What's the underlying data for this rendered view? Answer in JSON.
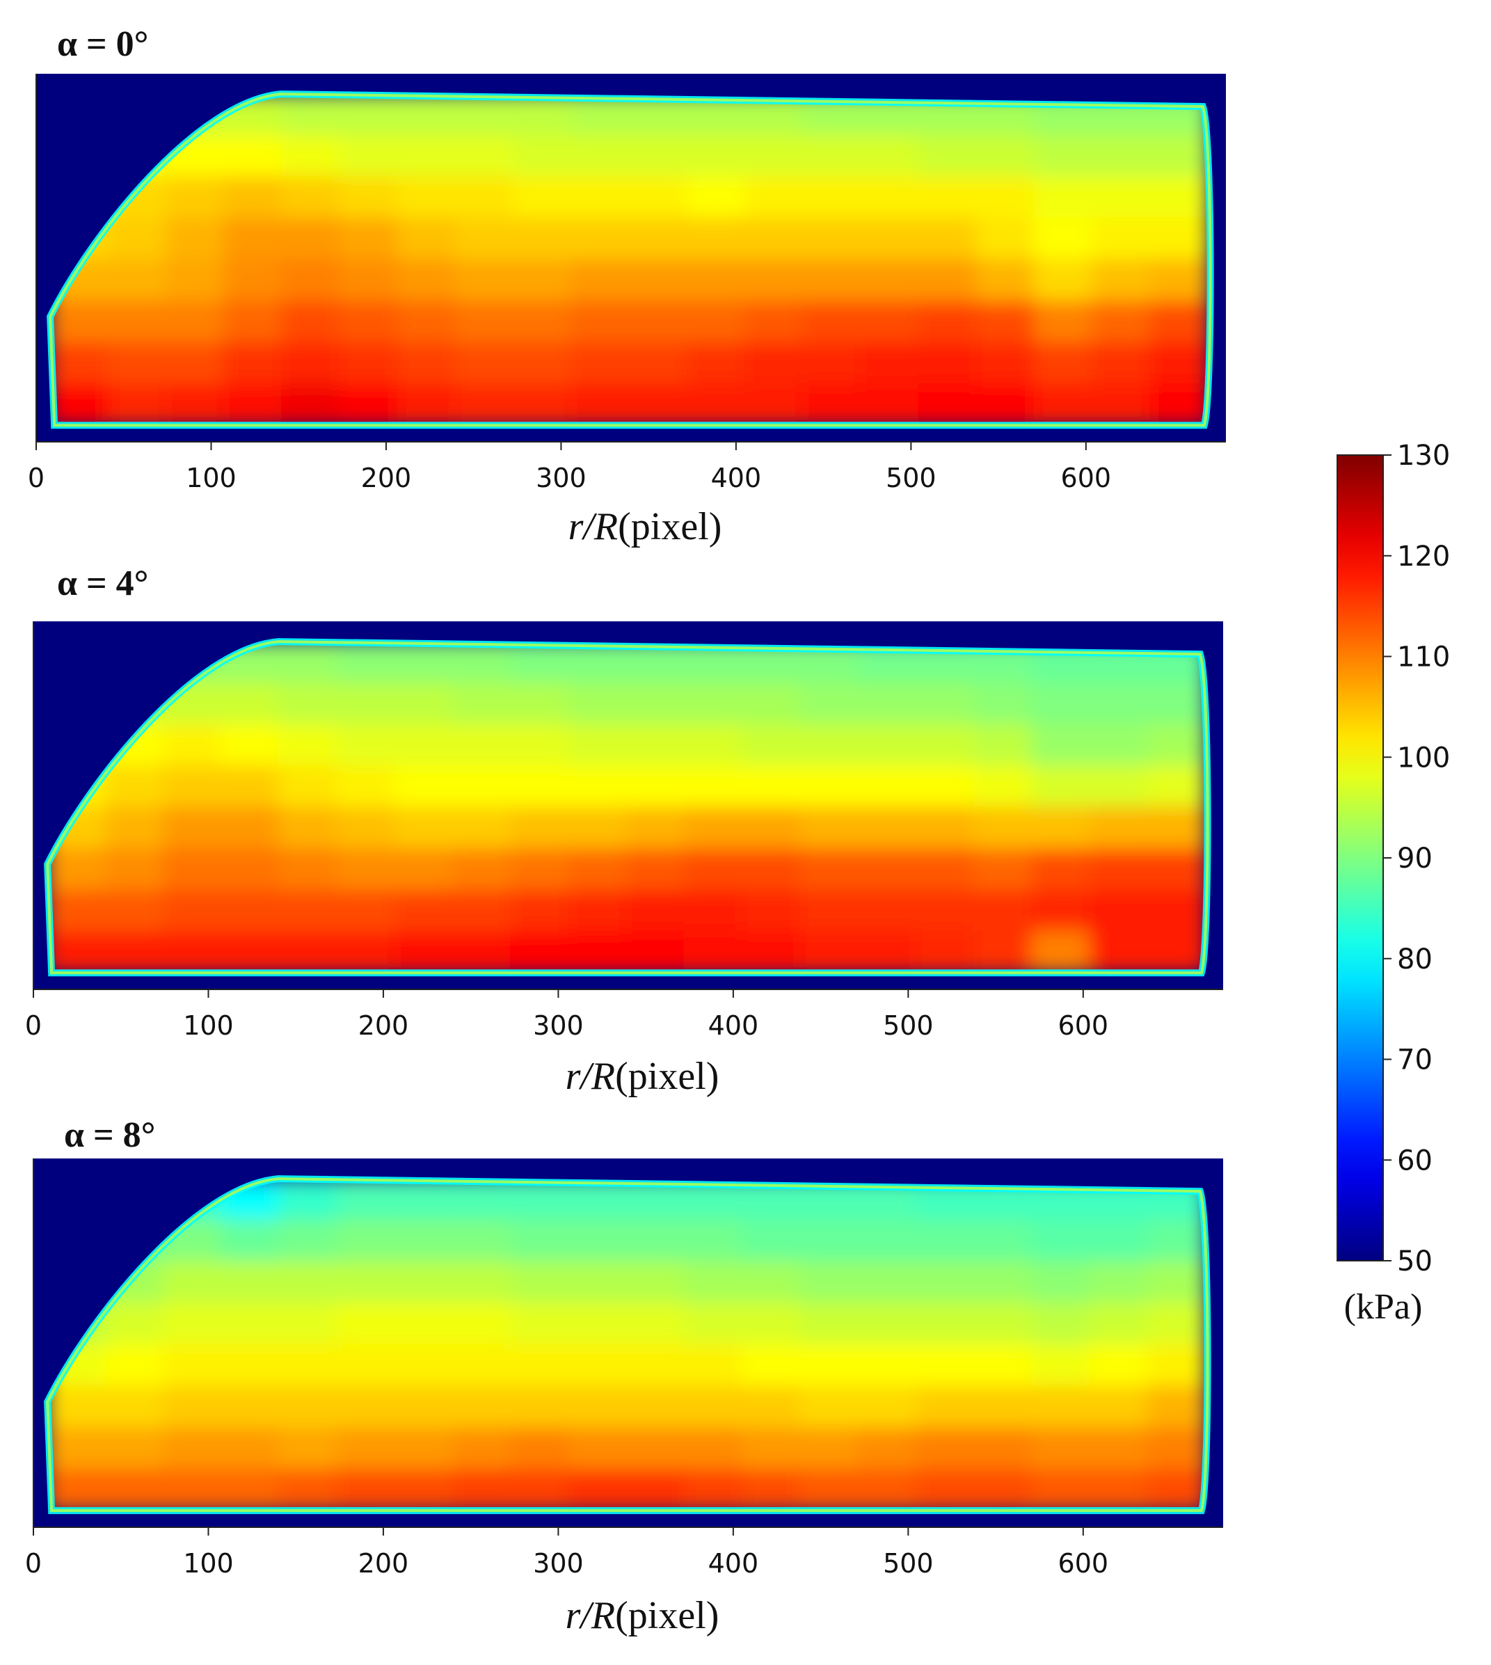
{
  "chart_data": {
    "type": "heatmap",
    "panels": [
      {
        "title": "α = 0°",
        "xlabel_italic": "r/R",
        "xlabel_rest": "(pixel)",
        "xticks": [
          0,
          100,
          200,
          300,
          400,
          500,
          600
        ],
        "xlim": [
          0,
          680
        ],
        "rows": [
          [
            null,
            92,
            96,
            96,
            95,
            95,
            95,
            95,
            95,
            94,
            94,
            94,
            94,
            93,
            93,
            93,
            93,
            92,
            92,
            92
          ],
          [
            null,
            99,
            100,
            100,
            99,
            98,
            98,
            98,
            97,
            97,
            97,
            97,
            97,
            97,
            97,
            96,
            96,
            95,
            95,
            95
          ],
          [
            101,
            103,
            104,
            105,
            104,
            103,
            102,
            102,
            101,
            101,
            101,
            100,
            101,
            101,
            101,
            101,
            101,
            99,
            99,
            99
          ],
          [
            103,
            104,
            106,
            108,
            108,
            107,
            105,
            104,
            104,
            104,
            104,
            104,
            104,
            104,
            104,
            104,
            102,
            100,
            101,
            101
          ],
          [
            106,
            106,
            107,
            109,
            110,
            109,
            108,
            107,
            107,
            108,
            108,
            108,
            108,
            108,
            108,
            108,
            106,
            103,
            105,
            106
          ],
          [
            110,
            110,
            110,
            112,
            114,
            113,
            112,
            111,
            111,
            112,
            112,
            112,
            113,
            114,
            114,
            115,
            114,
            110,
            112,
            114
          ],
          [
            115,
            114,
            114,
            116,
            117,
            116,
            115,
            114,
            114,
            115,
            115,
            116,
            117,
            117,
            118,
            118,
            117,
            115,
            116,
            118
          ],
          [
            120,
            117,
            118,
            119,
            121,
            120,
            118,
            117,
            117,
            118,
            118,
            118,
            118,
            119,
            119,
            120,
            120,
            118,
            118,
            120
          ]
        ]
      },
      {
        "title": "α = 4°",
        "xlabel_italic": "r/R",
        "xlabel_rest": "(pixel)",
        "xticks": [
          0,
          100,
          200,
          300,
          400,
          500,
          600
        ],
        "xlim": [
          0,
          680
        ],
        "rows": [
          [
            null,
            90,
            92,
            92,
            92,
            91,
            91,
            91,
            90,
            90,
            90,
            90,
            90,
            90,
            89,
            89,
            89,
            88,
            88,
            88
          ],
          [
            null,
            96,
            96,
            96,
            95,
            95,
            95,
            94,
            94,
            93,
            93,
            93,
            93,
            92,
            92,
            92,
            91,
            90,
            90,
            90
          ],
          [
            98,
            100,
            101,
            100,
            99,
            98,
            98,
            98,
            98,
            97,
            97,
            97,
            96,
            96,
            96,
            96,
            95,
            92,
            92,
            93
          ],
          [
            101,
            103,
            104,
            104,
            102,
            101,
            100,
            100,
            100,
            100,
            100,
            100,
            100,
            100,
            100,
            100,
            99,
            97,
            97,
            98
          ],
          [
            104,
            106,
            108,
            108,
            106,
            105,
            104,
            104,
            105,
            105,
            106,
            107,
            107,
            106,
            106,
            106,
            105,
            105,
            106,
            106
          ],
          [
            108,
            109,
            111,
            111,
            110,
            109,
            109,
            110,
            111,
            112,
            113,
            114,
            114,
            113,
            113,
            113,
            112,
            114,
            115,
            115
          ],
          [
            113,
            113,
            114,
            114,
            114,
            114,
            115,
            115,
            116,
            117,
            118,
            118,
            117,
            116,
            116,
            116,
            116,
            117,
            118,
            118
          ],
          [
            118,
            118,
            118,
            118,
            118,
            118,
            119,
            119,
            120,
            120,
            120,
            119,
            119,
            118,
            118,
            117,
            116,
            110,
            118,
            118
          ]
        ]
      },
      {
        "title": "α = 8°",
        "xlabel_italic": "r/R",
        "xlabel_rest": "(pixel)",
        "xticks": [
          0,
          100,
          200,
          300,
          400,
          500,
          600
        ],
        "xlim": [
          0,
          680
        ],
        "rows": [
          [
            null,
            83,
            84,
            80,
            84,
            86,
            86,
            86,
            86,
            86,
            86,
            86,
            86,
            86,
            86,
            85,
            85,
            85,
            85,
            85
          ],
          [
            null,
            89,
            90,
            88,
            89,
            90,
            90,
            90,
            89,
            89,
            89,
            89,
            88,
            88,
            88,
            88,
            88,
            87,
            87,
            88
          ],
          [
            91,
            93,
            95,
            95,
            95,
            95,
            95,
            95,
            94,
            94,
            94,
            93,
            93,
            92,
            92,
            92,
            92,
            91,
            92,
            93
          ],
          [
            95,
            97,
            98,
            98,
            98,
            99,
            99,
            99,
            98,
            98,
            98,
            97,
            97,
            96,
            96,
            96,
            96,
            95,
            96,
            97
          ],
          [
            99,
            100,
            101,
            101,
            101,
            101,
            101,
            101,
            101,
            101,
            101,
            101,
            100,
            100,
            100,
            100,
            100,
            99,
            100,
            101
          ],
          [
            103,
            103,
            104,
            104,
            104,
            104,
            104,
            104,
            104,
            104,
            104,
            104,
            104,
            103,
            103,
            104,
            104,
            104,
            104,
            106
          ],
          [
            107,
            107,
            108,
            108,
            107,
            108,
            108,
            109,
            110,
            109,
            109,
            109,
            108,
            108,
            109,
            110,
            110,
            109,
            109,
            110
          ],
          [
            112,
            112,
            112,
            112,
            113,
            114,
            114,
            115,
            115,
            116,
            116,
            115,
            114,
            113,
            113,
            114,
            114,
            113,
            113,
            114
          ]
        ]
      }
    ],
    "colorbar": {
      "colormap": "jet",
      "vmin": 50,
      "vmax": 130,
      "ticks": [
        130,
        120,
        110,
        100,
        90,
        80,
        70,
        60,
        50
      ],
      "unit": "(kPa)"
    },
    "background_color": "#00007f"
  }
}
